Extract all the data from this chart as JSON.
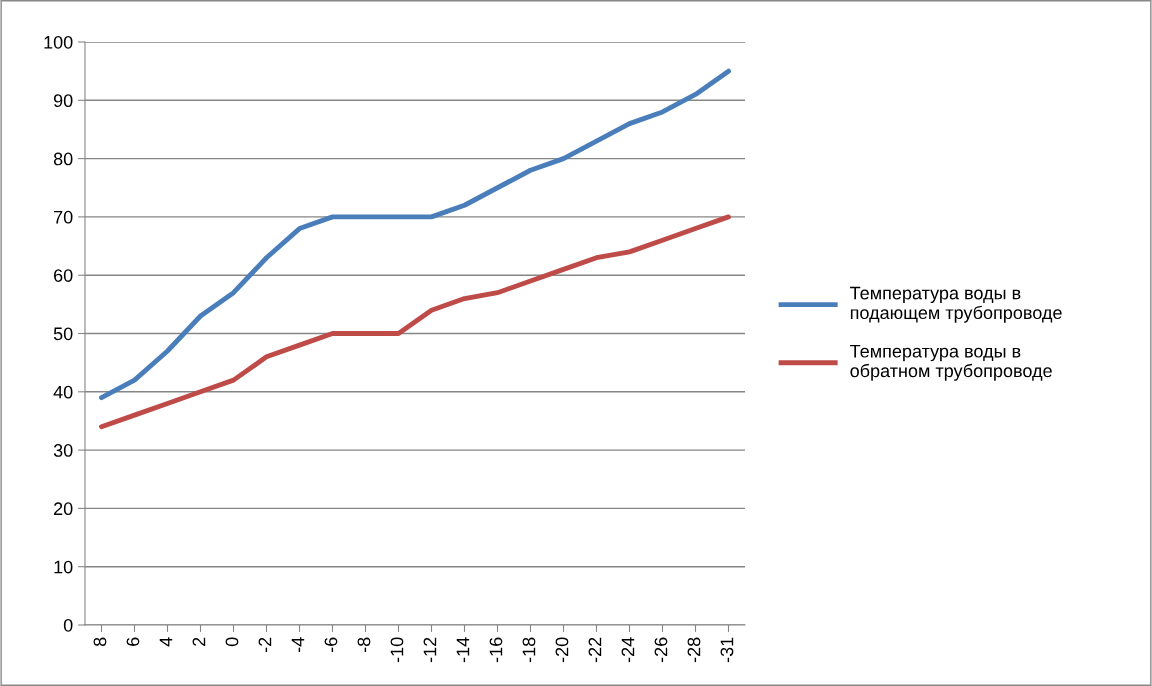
{
  "chart_data": {
    "type": "line",
    "categories": [
      "8",
      "6",
      "4",
      "2",
      "0",
      "-2",
      "-4",
      "-6",
      "-8",
      "-10",
      "-12",
      "-14",
      "-16",
      "-18",
      "-20",
      "-22",
      "-24",
      "-26",
      "-28",
      "-31"
    ],
    "series": [
      {
        "name": "Температура воды в подающем трубопроводе",
        "color": "#4a7ebb",
        "values": [
          39,
          42,
          47,
          53,
          57,
          63,
          68,
          70,
          70,
          70,
          70,
          72,
          75,
          78,
          80,
          83,
          86,
          88,
          91,
          95
        ]
      },
      {
        "name": "Температура воды в обратном трубопроводе",
        "color": "#be4b48",
        "values": [
          34,
          36,
          38,
          40,
          42,
          46,
          48,
          50,
          50,
          50,
          54,
          56,
          57,
          59,
          61,
          63,
          64,
          66,
          68,
          70
        ]
      }
    ],
    "ylim": [
      0,
      100
    ],
    "yticks": [
      0,
      10,
      20,
      30,
      40,
      50,
      60,
      70,
      80,
      90,
      100
    ],
    "grid": "y",
    "legend": "right",
    "marker": "none",
    "line_style": "solid"
  }
}
